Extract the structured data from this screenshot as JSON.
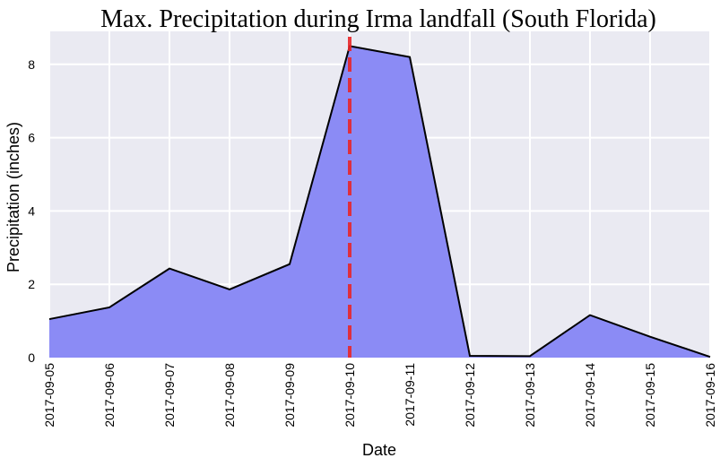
{
  "chart_data": {
    "type": "area",
    "title": "Max. Precipitation during Irma landfall (South Florida)",
    "xlabel": "Date",
    "ylabel": "Precipitation (inches)",
    "x": [
      "2017-09-05",
      "2017-09-06",
      "2017-09-07",
      "2017-09-08",
      "2017-09-09",
      "2017-09-10",
      "2017-09-11",
      "2017-09-12",
      "2017-09-13",
      "2017-09-14",
      "2017-09-15",
      "2017-09-16"
    ],
    "values": [
      1.05,
      1.37,
      2.43,
      1.86,
      2.55,
      8.5,
      8.2,
      0.05,
      0.04,
      1.16,
      0.57,
      0.02
    ],
    "yticks": [
      0,
      2,
      4,
      6,
      8
    ],
    "ylim": [
      0,
      8.9
    ],
    "grid": true,
    "marker_line": {
      "x": "2017-09-10",
      "color": "#e8262a",
      "style": "dashed"
    },
    "colors": {
      "fill": "#8b8bf5",
      "line": "#000000",
      "background": "#eaeaf2",
      "grid": "#ffffff"
    }
  }
}
